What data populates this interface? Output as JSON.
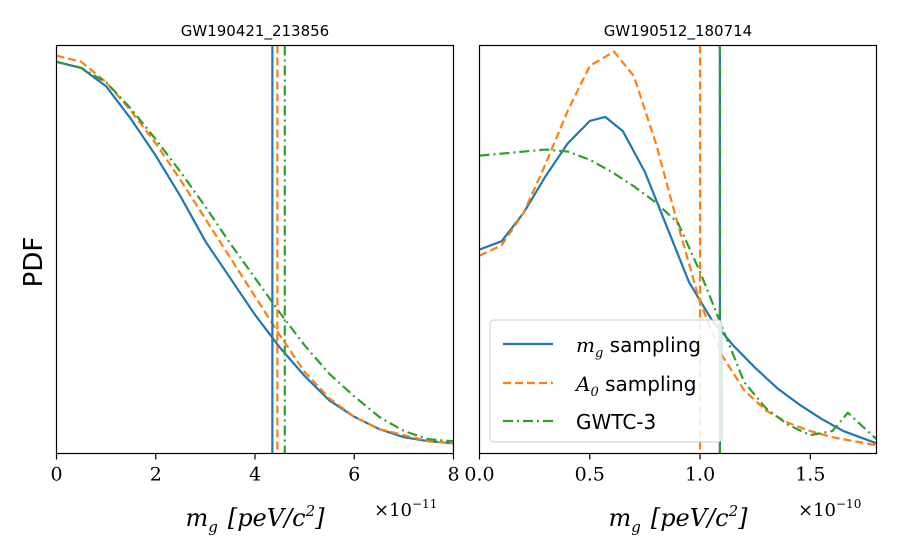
{
  "chart_data": [
    {
      "type": "line",
      "title": "GW190421_213856",
      "xlabel_base": "m",
      "xlabel_sub": "g",
      "xlabel_unit": "[peV/c",
      "xlabel_sup": "2",
      "xlabel_close": "]",
      "ylabel": "PDF",
      "xlim": [
        0,
        8
      ],
      "ylim": [
        0,
        1.0
      ],
      "x_scale_base": "×10",
      "x_scale_exp": "−11",
      "x_ticks": [
        0,
        2,
        4,
        6,
        8
      ],
      "x_tick_labels": [
        "0",
        "2",
        "4",
        "6",
        "8"
      ],
      "series": [
        {
          "name": "m_g sampling",
          "color": "#1f77b4",
          "style": "solid",
          "x": [
            0,
            0.5,
            1,
            1.5,
            2,
            2.5,
            3,
            3.5,
            4,
            4.5,
            5,
            5.5,
            6,
            6.5,
            7,
            7.5,
            8
          ],
          "y": [
            0.96,
            0.945,
            0.9,
            0.82,
            0.73,
            0.63,
            0.52,
            0.43,
            0.34,
            0.26,
            0.19,
            0.13,
            0.09,
            0.06,
            0.04,
            0.03,
            0.025
          ]
        },
        {
          "name": "A_0 sampling",
          "color": "#ff7f0e",
          "style": "dashed",
          "x": [
            0,
            0.5,
            1,
            1.5,
            2,
            2.5,
            3,
            3.5,
            4,
            4.5,
            5,
            5.5,
            6,
            6.5,
            7,
            7.5,
            8
          ],
          "y": [
            0.975,
            0.96,
            0.91,
            0.84,
            0.76,
            0.67,
            0.575,
            0.48,
            0.385,
            0.29,
            0.2,
            0.135,
            0.09,
            0.06,
            0.045,
            0.03,
            0.025
          ]
        },
        {
          "name": "GWTC-3",
          "color": "#2ca02c",
          "style": "dashdot",
          "x": [
            0,
            0.5,
            1,
            1.5,
            2,
            2.5,
            3,
            3.5,
            4,
            4.5,
            5,
            5.5,
            6,
            6.5,
            7,
            7.5,
            8
          ],
          "y": [
            0.96,
            0.945,
            0.91,
            0.845,
            0.77,
            0.69,
            0.605,
            0.515,
            0.43,
            0.345,
            0.265,
            0.195,
            0.14,
            0.09,
            0.055,
            0.035,
            0.03
          ]
        }
      ],
      "vlines": [
        {
          "series": "m_g sampling",
          "x": 4.35,
          "color": "#1f77b4",
          "style": "solid"
        },
        {
          "series": "A_0 sampling",
          "x": 4.45,
          "color": "#ff7f0e",
          "style": "dashed"
        },
        {
          "series": "GWTC-3",
          "x": 4.6,
          "color": "#2ca02c",
          "style": "dashdot"
        }
      ]
    },
    {
      "type": "line",
      "title": "GW190512_180714",
      "xlabel_base": "m",
      "xlabel_sub": "g",
      "xlabel_unit": "[peV/c",
      "xlabel_sup": "2",
      "xlabel_close": "]",
      "xlim": [
        0,
        1.8
      ],
      "ylim": [
        0,
        1.0
      ],
      "x_scale_base": "×10",
      "x_scale_exp": "−10",
      "x_ticks": [
        0,
        0.5,
        1.0,
        1.5
      ],
      "x_tick_labels": [
        "0.0",
        "0.5",
        "1.0",
        "1.5"
      ],
      "series": [
        {
          "name": "m_g sampling",
          "color": "#1f77b4",
          "style": "solid",
          "x": [
            0,
            0.1,
            0.2,
            0.3,
            0.4,
            0.5,
            0.57,
            0.65,
            0.75,
            0.85,
            0.95,
            1.05,
            1.15,
            1.25,
            1.35,
            1.45,
            1.55,
            1.65,
            1.8
          ],
          "y": [
            0.5,
            0.52,
            0.59,
            0.68,
            0.76,
            0.815,
            0.825,
            0.79,
            0.69,
            0.555,
            0.42,
            0.33,
            0.265,
            0.21,
            0.16,
            0.12,
            0.085,
            0.055,
            0.025
          ]
        },
        {
          "name": "A_0 sampling",
          "color": "#ff7f0e",
          "style": "dashed",
          "x": [
            0,
            0.1,
            0.2,
            0.3,
            0.4,
            0.5,
            0.61,
            0.7,
            0.8,
            0.9,
            1.0,
            1.1,
            1.2,
            1.3,
            1.4,
            1.5,
            1.6,
            1.7,
            1.8
          ],
          "y": [
            0.485,
            0.51,
            0.59,
            0.71,
            0.84,
            0.95,
            0.985,
            0.925,
            0.76,
            0.56,
            0.37,
            0.24,
            0.155,
            0.105,
            0.075,
            0.055,
            0.04,
            0.03,
            0.02
          ]
        },
        {
          "name": "GWTC-3",
          "color": "#2ca02c",
          "style": "dashdot",
          "x": [
            0,
            0.1,
            0.2,
            0.3,
            0.4,
            0.5,
            0.6,
            0.7,
            0.8,
            0.9,
            1.0,
            1.1,
            1.2,
            1.3,
            1.4,
            1.5,
            1.6,
            1.67,
            1.75,
            1.8
          ],
          "y": [
            0.73,
            0.735,
            0.74,
            0.745,
            0.74,
            0.72,
            0.69,
            0.655,
            0.615,
            0.565,
            0.445,
            0.31,
            0.175,
            0.11,
            0.07,
            0.045,
            0.055,
            0.1,
            0.06,
            0.035
          ]
        }
      ],
      "vlines": [
        {
          "series": "m_g sampling",
          "x": 1.09,
          "color": "#1f77b4",
          "style": "solid"
        },
        {
          "series": "A_0 sampling",
          "x": 1.0,
          "color": "#ff7f0e",
          "style": "dashed"
        },
        {
          "series": "GWTC-3",
          "x": 1.09,
          "color": "#2ca02c",
          "style": "dashdot"
        }
      ],
      "legend": {
        "position": "lower-right",
        "entries": [
          {
            "series": "m_g sampling",
            "base": "m",
            "sub": "g",
            "suffix": " sampling"
          },
          {
            "series": "A_0 sampling",
            "base": "A",
            "sub": "0",
            "suffix": " sampling"
          },
          {
            "series": "GWTC-3",
            "base": "",
            "sub": "",
            "suffix": "GWTC-3"
          }
        ]
      }
    }
  ]
}
